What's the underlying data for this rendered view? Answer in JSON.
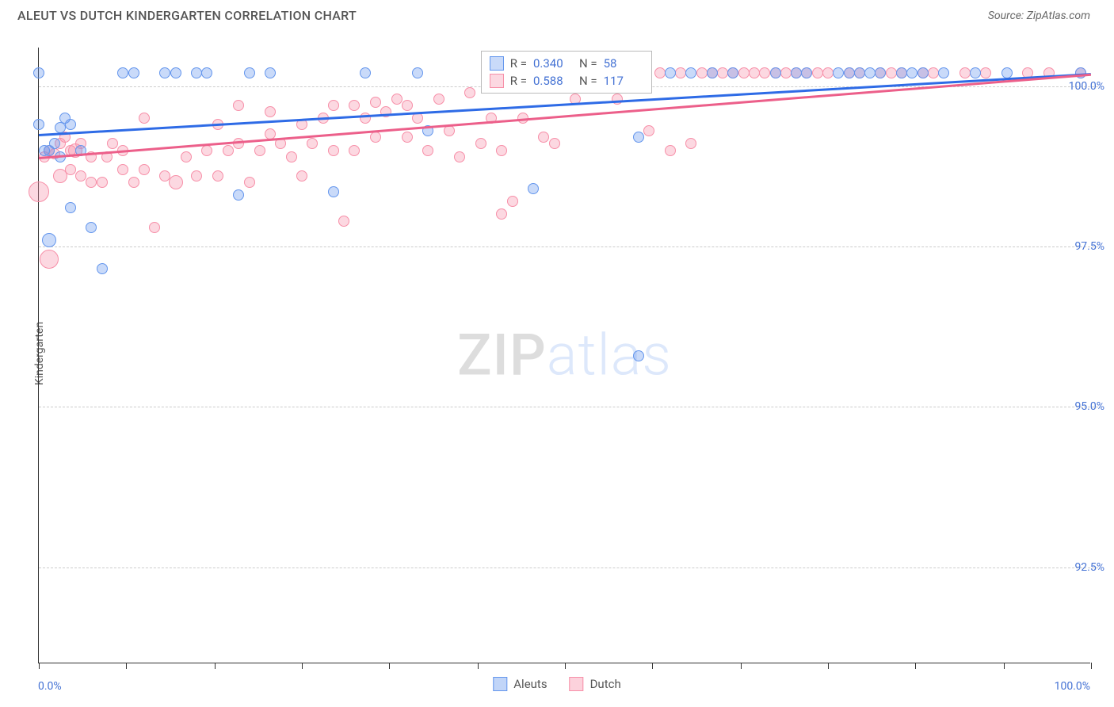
{
  "header": {
    "title": "ALEUT VS DUTCH KINDERGARTEN CORRELATION CHART",
    "source": "Source: ZipAtlas.com"
  },
  "watermark": {
    "part1": "ZIP",
    "part2": "atlas"
  },
  "chart": {
    "type": "scatter",
    "ylabel": "Kindergarten",
    "xlim": [
      0,
      100
    ],
    "ylim": [
      91.0,
      100.6
    ],
    "xtick_labels": {
      "min": "0.0%",
      "max": "100.0%"
    },
    "xtick_positions_pct": [
      0,
      8.3,
      16.7,
      25,
      33.3,
      41.7,
      50,
      58.3,
      66.7,
      75,
      83.3,
      91.7,
      100
    ],
    "ytick_labels": [
      {
        "y": 100.0,
        "label": "100.0%"
      },
      {
        "y": 97.5,
        "label": "97.5%"
      },
      {
        "y": 95.0,
        "label": "95.0%"
      },
      {
        "y": 92.5,
        "label": "92.5%"
      }
    ],
    "grid_color": "#cccccc",
    "background_color": "#ffffff",
    "marker_default_size": 14,
    "series": [
      {
        "name": "Aleuts",
        "color": "#6496ed",
        "fill": "rgba(100,150,237,0.35)",
        "R": "0.340",
        "N": "58",
        "trend": {
          "x1": 0,
          "y1": 99.25,
          "x2": 100,
          "y2": 100.2,
          "color": "#2e6be6",
          "width": 2.5
        },
        "points": [
          {
            "x": 0.0,
            "y": 100.2,
            "s": 14
          },
          {
            "x": 0.0,
            "y": 99.4,
            "s": 14
          },
          {
            "x": 0.5,
            "y": 99.0,
            "s": 14
          },
          {
            "x": 1.0,
            "y": 99.0,
            "s": 14
          },
          {
            "x": 1.0,
            "y": 97.6,
            "s": 18
          },
          {
            "x": 1.5,
            "y": 99.1,
            "s": 14
          },
          {
            "x": 2.0,
            "y": 99.35,
            "s": 14
          },
          {
            "x": 2.0,
            "y": 98.9,
            "s": 14
          },
          {
            "x": 2.5,
            "y": 99.5,
            "s": 14
          },
          {
            "x": 3.0,
            "y": 99.4,
            "s": 14
          },
          {
            "x": 3.0,
            "y": 98.1,
            "s": 14
          },
          {
            "x": 4.0,
            "y": 99.0,
            "s": 14
          },
          {
            "x": 5.0,
            "y": 97.8,
            "s": 14
          },
          {
            "x": 6.0,
            "y": 97.15,
            "s": 14
          },
          {
            "x": 8.0,
            "y": 100.2,
            "s": 14
          },
          {
            "x": 9.0,
            "y": 100.2,
            "s": 14
          },
          {
            "x": 12.0,
            "y": 100.2,
            "s": 14
          },
          {
            "x": 13.0,
            "y": 100.2,
            "s": 14
          },
          {
            "x": 15.0,
            "y": 100.2,
            "s": 14
          },
          {
            "x": 16.0,
            "y": 100.2,
            "s": 14
          },
          {
            "x": 19.0,
            "y": 98.3,
            "s": 14
          },
          {
            "x": 20.0,
            "y": 100.2,
            "s": 14
          },
          {
            "x": 22.0,
            "y": 100.2,
            "s": 14
          },
          {
            "x": 28.0,
            "y": 98.35,
            "s": 14
          },
          {
            "x": 31.0,
            "y": 100.2,
            "s": 14
          },
          {
            "x": 36.0,
            "y": 100.2,
            "s": 14
          },
          {
            "x": 37.0,
            "y": 99.3,
            "s": 14
          },
          {
            "x": 46.0,
            "y": 100.2,
            "s": 14
          },
          {
            "x": 47.0,
            "y": 98.4,
            "s": 14
          },
          {
            "x": 50.0,
            "y": 100.2,
            "s": 14
          },
          {
            "x": 54.0,
            "y": 100.0,
            "s": 14
          },
          {
            "x": 55.0,
            "y": 100.2,
            "s": 14
          },
          {
            "x": 57.0,
            "y": 95.8,
            "s": 14
          },
          {
            "x": 57.0,
            "y": 99.2,
            "s": 14
          },
          {
            "x": 60.0,
            "y": 100.2,
            "s": 14
          },
          {
            "x": 62.0,
            "y": 100.2,
            "s": 14
          },
          {
            "x": 64.0,
            "y": 100.2,
            "s": 14
          },
          {
            "x": 66.0,
            "y": 100.2,
            "s": 14
          },
          {
            "x": 70.0,
            "y": 100.2,
            "s": 14
          },
          {
            "x": 72.0,
            "y": 100.2,
            "s": 14
          },
          {
            "x": 73.0,
            "y": 100.2,
            "s": 14
          },
          {
            "x": 76.0,
            "y": 100.2,
            "s": 14
          },
          {
            "x": 77.0,
            "y": 100.2,
            "s": 14
          },
          {
            "x": 78.0,
            "y": 100.2,
            "s": 14
          },
          {
            "x": 79.0,
            "y": 100.2,
            "s": 14
          },
          {
            "x": 80.0,
            "y": 100.2,
            "s": 14
          },
          {
            "x": 82.0,
            "y": 100.2,
            "s": 14
          },
          {
            "x": 83.0,
            "y": 100.2,
            "s": 14
          },
          {
            "x": 84.0,
            "y": 100.2,
            "s": 14
          },
          {
            "x": 86.0,
            "y": 100.2,
            "s": 14
          },
          {
            "x": 89.0,
            "y": 100.2,
            "s": 14
          },
          {
            "x": 92.0,
            "y": 100.2,
            "s": 14
          },
          {
            "x": 99.0,
            "y": 100.2,
            "s": 14
          }
        ]
      },
      {
        "name": "Dutch",
        "color": "#f78fa8",
        "fill": "rgba(247,143,168,0.35)",
        "R": "0.588",
        "N": "117",
        "trend": {
          "x1": 0,
          "y1": 98.9,
          "x2": 100,
          "y2": 100.2,
          "color": "#ec5f8a",
          "width": 2.5
        },
        "points": [
          {
            "x": 0.0,
            "y": 98.35,
            "s": 26
          },
          {
            "x": 0.5,
            "y": 98.9,
            "s": 14
          },
          {
            "x": 1.0,
            "y": 97.3,
            "s": 24
          },
          {
            "x": 1.0,
            "y": 99.0,
            "s": 14
          },
          {
            "x": 1.5,
            "y": 98.95,
            "s": 14
          },
          {
            "x": 2.0,
            "y": 98.6,
            "s": 18
          },
          {
            "x": 2.0,
            "y": 99.1,
            "s": 14
          },
          {
            "x": 2.5,
            "y": 99.2,
            "s": 14
          },
          {
            "x": 3.0,
            "y": 99.0,
            "s": 14
          },
          {
            "x": 3.0,
            "y": 98.7,
            "s": 14
          },
          {
            "x": 3.5,
            "y": 99.0,
            "s": 18
          },
          {
            "x": 4.0,
            "y": 98.6,
            "s": 14
          },
          {
            "x": 4.0,
            "y": 99.1,
            "s": 14
          },
          {
            "x": 5.0,
            "y": 98.9,
            "s": 14
          },
          {
            "x": 5.0,
            "y": 98.5,
            "s": 14
          },
          {
            "x": 6.0,
            "y": 98.5,
            "s": 14
          },
          {
            "x": 6.5,
            "y": 98.9,
            "s": 14
          },
          {
            "x": 7.0,
            "y": 99.1,
            "s": 14
          },
          {
            "x": 8.0,
            "y": 98.7,
            "s": 14
          },
          {
            "x": 8.0,
            "y": 99.0,
            "s": 14
          },
          {
            "x": 9.0,
            "y": 98.5,
            "s": 14
          },
          {
            "x": 10.0,
            "y": 99.5,
            "s": 14
          },
          {
            "x": 10.0,
            "y": 98.7,
            "s": 14
          },
          {
            "x": 11.0,
            "y": 97.8,
            "s": 14
          },
          {
            "x": 12.0,
            "y": 98.6,
            "s": 14
          },
          {
            "x": 13.0,
            "y": 98.5,
            "s": 18
          },
          {
            "x": 14.0,
            "y": 98.9,
            "s": 14
          },
          {
            "x": 15.0,
            "y": 98.6,
            "s": 14
          },
          {
            "x": 16.0,
            "y": 99.0,
            "s": 14
          },
          {
            "x": 17.0,
            "y": 98.6,
            "s": 14
          },
          {
            "x": 17.0,
            "y": 99.4,
            "s": 14
          },
          {
            "x": 18.0,
            "y": 99.0,
            "s": 14
          },
          {
            "x": 19.0,
            "y": 99.1,
            "s": 14
          },
          {
            "x": 19.0,
            "y": 99.7,
            "s": 14
          },
          {
            "x": 20.0,
            "y": 98.5,
            "s": 14
          },
          {
            "x": 21.0,
            "y": 99.0,
            "s": 14
          },
          {
            "x": 22.0,
            "y": 99.25,
            "s": 14
          },
          {
            "x": 22.0,
            "y": 99.6,
            "s": 14
          },
          {
            "x": 23.0,
            "y": 99.1,
            "s": 14
          },
          {
            "x": 24.0,
            "y": 98.9,
            "s": 14
          },
          {
            "x": 25.0,
            "y": 99.4,
            "s": 14
          },
          {
            "x": 25.0,
            "y": 98.6,
            "s": 14
          },
          {
            "x": 26.0,
            "y": 99.1,
            "s": 14
          },
          {
            "x": 27.0,
            "y": 99.5,
            "s": 14
          },
          {
            "x": 28.0,
            "y": 99.0,
            "s": 14
          },
          {
            "x": 28.0,
            "y": 99.7,
            "s": 14
          },
          {
            "x": 29.0,
            "y": 97.9,
            "s": 14
          },
          {
            "x": 30.0,
            "y": 99.7,
            "s": 14
          },
          {
            "x": 30.0,
            "y": 99.0,
            "s": 14
          },
          {
            "x": 31.0,
            "y": 99.5,
            "s": 14
          },
          {
            "x": 32.0,
            "y": 99.75,
            "s": 14
          },
          {
            "x": 32.0,
            "y": 99.2,
            "s": 14
          },
          {
            "x": 33.0,
            "y": 99.6,
            "s": 14
          },
          {
            "x": 34.0,
            "y": 99.8,
            "s": 14
          },
          {
            "x": 35.0,
            "y": 99.2,
            "s": 14
          },
          {
            "x": 35.0,
            "y": 99.7,
            "s": 14
          },
          {
            "x": 36.0,
            "y": 99.5,
            "s": 14
          },
          {
            "x": 37.0,
            "y": 99.0,
            "s": 14
          },
          {
            "x": 38.0,
            "y": 99.8,
            "s": 14
          },
          {
            "x": 39.0,
            "y": 99.3,
            "s": 14
          },
          {
            "x": 40.0,
            "y": 98.9,
            "s": 14
          },
          {
            "x": 41.0,
            "y": 99.9,
            "s": 14
          },
          {
            "x": 42.0,
            "y": 99.1,
            "s": 14
          },
          {
            "x": 43.0,
            "y": 99.5,
            "s": 14
          },
          {
            "x": 44.0,
            "y": 98.0,
            "s": 14
          },
          {
            "x": 44.0,
            "y": 99.0,
            "s": 14
          },
          {
            "x": 45.0,
            "y": 98.2,
            "s": 14
          },
          {
            "x": 46.0,
            "y": 99.5,
            "s": 14
          },
          {
            "x": 47.0,
            "y": 100.2,
            "s": 14
          },
          {
            "x": 48.0,
            "y": 99.2,
            "s": 14
          },
          {
            "x": 49.0,
            "y": 100.2,
            "s": 14
          },
          {
            "x": 49.0,
            "y": 99.1,
            "s": 14
          },
          {
            "x": 50.0,
            "y": 100.0,
            "s": 14
          },
          {
            "x": 51.0,
            "y": 99.8,
            "s": 14
          },
          {
            "x": 52.0,
            "y": 100.2,
            "s": 14
          },
          {
            "x": 53.0,
            "y": 100.0,
            "s": 14
          },
          {
            "x": 54.0,
            "y": 100.2,
            "s": 14
          },
          {
            "x": 55.0,
            "y": 99.8,
            "s": 14
          },
          {
            "x": 56.0,
            "y": 100.2,
            "s": 14
          },
          {
            "x": 57.0,
            "y": 100.0,
            "s": 14
          },
          {
            "x": 58.0,
            "y": 99.3,
            "s": 14
          },
          {
            "x": 59.0,
            "y": 100.2,
            "s": 14
          },
          {
            "x": 60.0,
            "y": 99.0,
            "s": 14
          },
          {
            "x": 61.0,
            "y": 100.2,
            "s": 14
          },
          {
            "x": 62.0,
            "y": 99.1,
            "s": 14
          },
          {
            "x": 63.0,
            "y": 100.2,
            "s": 14
          },
          {
            "x": 64.0,
            "y": 100.2,
            "s": 14
          },
          {
            "x": 65.0,
            "y": 100.2,
            "s": 14
          },
          {
            "x": 66.0,
            "y": 100.2,
            "s": 14
          },
          {
            "x": 67.0,
            "y": 100.2,
            "s": 14
          },
          {
            "x": 68.0,
            "y": 100.2,
            "s": 14
          },
          {
            "x": 69.0,
            "y": 100.2,
            "s": 14
          },
          {
            "x": 70.0,
            "y": 100.2,
            "s": 14
          },
          {
            "x": 71.0,
            "y": 100.2,
            "s": 14
          },
          {
            "x": 72.0,
            "y": 100.2,
            "s": 14
          },
          {
            "x": 73.0,
            "y": 100.2,
            "s": 14
          },
          {
            "x": 74.0,
            "y": 100.2,
            "s": 14
          },
          {
            "x": 75.0,
            "y": 100.2,
            "s": 14
          },
          {
            "x": 77.0,
            "y": 100.2,
            "s": 14
          },
          {
            "x": 78.0,
            "y": 100.2,
            "s": 14
          },
          {
            "x": 80.0,
            "y": 100.2,
            "s": 14
          },
          {
            "x": 81.0,
            "y": 100.2,
            "s": 14
          },
          {
            "x": 82.0,
            "y": 100.2,
            "s": 14
          },
          {
            "x": 84.0,
            "y": 100.2,
            "s": 14
          },
          {
            "x": 85.0,
            "y": 100.2,
            "s": 14
          },
          {
            "x": 88.0,
            "y": 100.2,
            "s": 14
          },
          {
            "x": 90.0,
            "y": 100.2,
            "s": 14
          },
          {
            "x": 94.0,
            "y": 100.2,
            "s": 14
          },
          {
            "x": 96.0,
            "y": 100.2,
            "s": 14
          },
          {
            "x": 99.0,
            "y": 100.2,
            "s": 14
          }
        ]
      }
    ],
    "legend_top": {
      "R_label": "R =",
      "N_label": "N ="
    },
    "legend_bottom": [
      {
        "label": "Aleuts",
        "color": "#6496ed",
        "fill": "rgba(100,150,237,0.4)"
      },
      {
        "label": "Dutch",
        "color": "#f78fa8",
        "fill": "rgba(247,143,168,0.4)"
      }
    ]
  }
}
